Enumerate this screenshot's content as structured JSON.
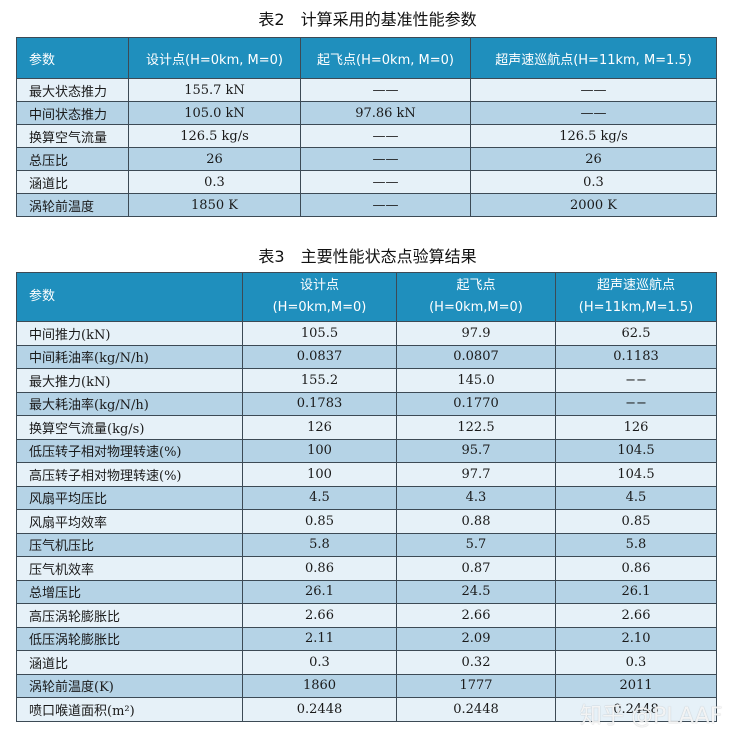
{
  "table2": {
    "caption": "表2　计算采用的基准性能参数",
    "headers": [
      "参数",
      "设计点(H=0km, M=0)",
      "起飞点(H=0km, M=0)",
      "超声速巡航点(H=11km, M=1.5)"
    ],
    "rows": [
      [
        "最大状态推力",
        "155.7 kN",
        "——",
        "——"
      ],
      [
        "中间状态推力",
        "105.0 kN",
        "97.86 kN",
        "——"
      ],
      [
        "换算空气流量",
        "126.5 kg/s",
        "——",
        "126.5 kg/s"
      ],
      [
        "总压比",
        "26",
        "——",
        "26"
      ],
      [
        "涵道比",
        "0.3",
        "——",
        "0.3"
      ],
      [
        "涡轮前温度",
        "1850 K",
        "——",
        "2000 K"
      ]
    ]
  },
  "table3": {
    "caption": "表3　主要性能状态点验算结果",
    "headers": [
      {
        "line1": "参数",
        "line2": ""
      },
      {
        "line1": "设计点",
        "line2": "(H=0km,M=0)"
      },
      {
        "line1": "起飞点",
        "line2": "(H=0km,M=0)"
      },
      {
        "line1": "超声速巡航点",
        "line2": "(H=11km,M=1.5)"
      }
    ],
    "rows": [
      [
        "中间推力(kN)",
        "105.5",
        "97.9",
        "62.5"
      ],
      [
        "中间耗油率(kg/N/h)",
        "0.0837",
        "0.0807",
        "0.1183"
      ],
      [
        "最大推力(kN)",
        "155.2",
        "145.0",
        "−−"
      ],
      [
        "最大耗油率(kg/N/h)",
        "0.1783",
        "0.1770",
        "−−"
      ],
      [
        "换算空气流量(kg/s)",
        "126",
        "122.5",
        "126"
      ],
      [
        "低压转子相对物理转速(%)",
        "100",
        "95.7",
        "104.5"
      ],
      [
        "高压转子相对物理转速(%)",
        "100",
        "97.7",
        "104.5"
      ],
      [
        "风扇平均压比",
        "4.5",
        "4.3",
        "4.5"
      ],
      [
        "风扇平均效率",
        "0.85",
        "0.88",
        "0.85"
      ],
      [
        "压气机压比",
        "5.8",
        "5.7",
        "5.8"
      ],
      [
        "压气机效率",
        "0.86",
        "0.87",
        "0.86"
      ],
      [
        "总增压比",
        "26.1",
        "24.5",
        "26.1"
      ],
      [
        "高压涡轮膨胀比",
        "2.66",
        "2.66",
        "2.66"
      ],
      [
        "低压涡轮膨胀比",
        "2.11",
        "2.09",
        "2.10"
      ],
      [
        "涵道比",
        "0.3",
        "0.32",
        "0.3"
      ],
      [
        "涡轮前温度(K)",
        "1860",
        "1777",
        "2011"
      ],
      [
        "喷口喉道面积(m²)",
        "0.2448",
        "0.2448",
        "0.2448"
      ]
    ]
  },
  "watermark": "知乎 @PLAAF",
  "colors": {
    "header_bg": "#1f8fbd",
    "row_light": "#e6f1f8",
    "row_dark": "#b5d3e6"
  }
}
